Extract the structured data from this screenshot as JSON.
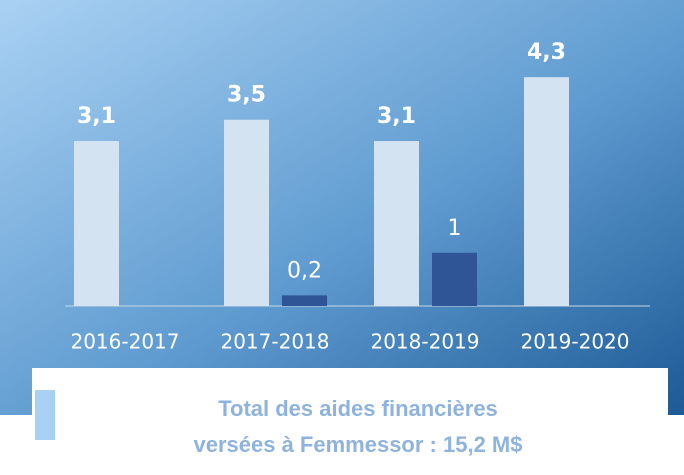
{
  "chart_data": {
    "type": "bar",
    "categories": [
      "2016-2017",
      "2017-2018",
      "2018-2019",
      "2019-2020"
    ],
    "series": [
      {
        "color": "#d3e3f2",
        "values": [
          3.1,
          3.5,
          3.1,
          4.3
        ],
        "value_labels": [
          "3,1",
          "3,5",
          "3,1",
          "4,3"
        ]
      },
      {
        "color": "#2f5597",
        "values": [
          null,
          0.2,
          1,
          null
        ],
        "value_labels": [
          null,
          "0,2",
          "1",
          null
        ]
      }
    ],
    "ylim": [
      0,
      5.75
    ],
    "note_box": {
      "lines": [
        "Total des aides financières",
        "versées à Femmessor  :  15,2 M$"
      ]
    }
  }
}
